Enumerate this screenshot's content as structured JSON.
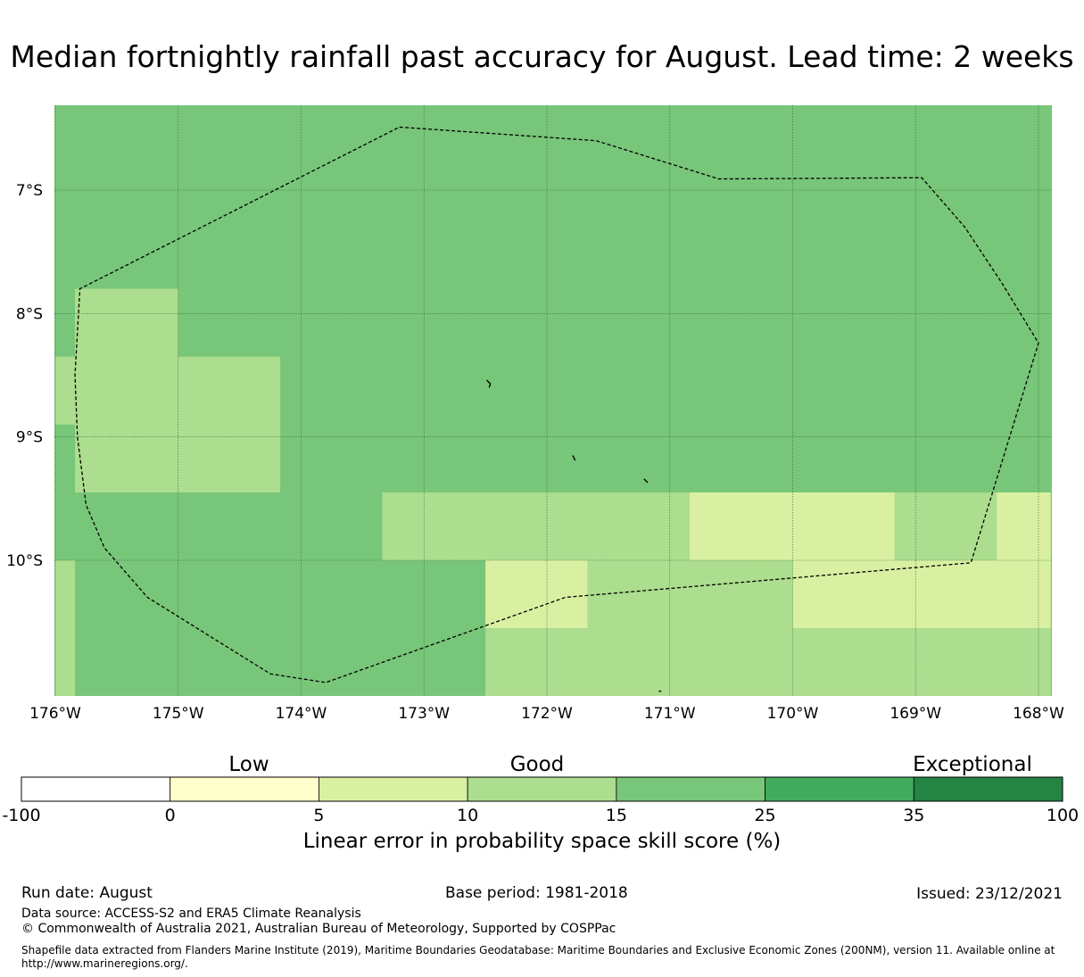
{
  "title": "Median fortnightly rainfall past accuracy for August. Lead time: 2 weeks",
  "map": {
    "lon_range": [
      -176,
      -167.9
    ],
    "lat_range": [
      -11.1,
      -6.3
    ],
    "lon_ticks": [
      {
        "value": -176,
        "label": "176°W"
      },
      {
        "value": -175,
        "label": "175°W"
      },
      {
        "value": -174,
        "label": "174°W"
      },
      {
        "value": -173,
        "label": "173°W"
      },
      {
        "value": -172,
        "label": "172°W"
      },
      {
        "value": -171,
        "label": "171°W"
      },
      {
        "value": -170,
        "label": "170°W"
      },
      {
        "value": -169,
        "label": "169°W"
      },
      {
        "value": -168,
        "label": "168°W"
      }
    ],
    "lat_ticks": [
      {
        "value": -7,
        "label": "7°S"
      },
      {
        "value": -8,
        "label": "8°S"
      },
      {
        "value": -9,
        "label": "9°S"
      },
      {
        "value": -10,
        "label": "10°S"
      }
    ],
    "background_color": "#78c679",
    "cells": [
      {
        "lon": [
          -175.84,
          -175.0
        ],
        "lat": [
          -8.9,
          -7.8
        ],
        "color": "#addd8e"
      },
      {
        "lon": [
          -176.0,
          -175.84
        ],
        "lat": [
          -8.9,
          -8.35
        ],
        "color": "#addd8e"
      },
      {
        "lon": [
          -175.0,
          -174.17
        ],
        "lat": [
          -9.45,
          -8.35
        ],
        "color": "#addd8e"
      },
      {
        "lon": [
          -175.84,
          -175.0
        ],
        "lat": [
          -9.45,
          -8.9
        ],
        "color": "#addd8e"
      },
      {
        "lon": [
          -173.34,
          -170.84
        ],
        "lat": [
          -10.0,
          -9.45
        ],
        "color": "#addd8e"
      },
      {
        "lon": [
          -170.84,
          -169.17
        ],
        "lat": [
          -10.0,
          -9.45
        ],
        "color": "#d9f0a3"
      },
      {
        "lon": [
          -169.17,
          -168.34
        ],
        "lat": [
          -10.0,
          -9.45
        ],
        "color": "#addd8e"
      },
      {
        "lon": [
          -168.34,
          -167.9
        ],
        "lat": [
          -10.0,
          -9.45
        ],
        "color": "#d9f0a3"
      },
      {
        "lon": [
          -176.0,
          -175.84
        ],
        "lat": [
          -11.1,
          -10.0
        ],
        "color": "#addd8e"
      },
      {
        "lon": [
          -172.5,
          -171.67
        ],
        "lat": [
          -10.55,
          -10.0
        ],
        "color": "#d9f0a3"
      },
      {
        "lon": [
          -171.67,
          -170.0
        ],
        "lat": [
          -10.55,
          -10.0
        ],
        "color": "#addd8e"
      },
      {
        "lon": [
          -170.0,
          -167.9
        ],
        "lat": [
          -10.55,
          -10.0
        ],
        "color": "#d9f0a3"
      },
      {
        "lon": [
          -172.5,
          -167.9
        ],
        "lat": [
          -11.1,
          -10.55
        ],
        "color": "#addd8e"
      }
    ],
    "eez_boundary": [
      [
        -173.2,
        -6.49
      ],
      [
        -171.6,
        -6.6
      ],
      [
        -170.6,
        -6.91
      ],
      [
        -168.95,
        -6.9
      ],
      [
        -168.6,
        -7.3
      ],
      [
        -168.3,
        -7.75
      ],
      [
        -168.0,
        -8.24
      ],
      [
        -168.55,
        -10.02
      ],
      [
        -171.85,
        -10.3
      ],
      [
        -173.8,
        -10.99
      ],
      [
        -174.25,
        -10.92
      ],
      [
        -175.25,
        -10.3
      ],
      [
        -175.6,
        -9.9
      ],
      [
        -175.75,
        -9.55
      ],
      [
        -175.82,
        -9.0
      ],
      [
        -175.84,
        -8.5
      ],
      [
        -175.8,
        -7.8
      ],
      [
        -173.2,
        -6.49
      ]
    ],
    "islands": [
      [
        [
          -172.49,
          -8.54
        ],
        [
          -172.46,
          -8.57
        ],
        [
          -172.47,
          -8.6
        ]
      ],
      [
        [
          -171.79,
          -9.15
        ],
        [
          -171.77,
          -9.19
        ]
      ],
      [
        [
          -171.21,
          -9.34
        ],
        [
          -171.18,
          -9.37
        ]
      ],
      [
        [
          -171.09,
          -11.06
        ],
        [
          -171.07,
          -11.06
        ]
      ]
    ]
  },
  "colorbar": {
    "categories": [
      "Low",
      "Good",
      "Exceptional"
    ],
    "tick_labels": [
      "-100",
      "0",
      "5",
      "10",
      "15",
      "25",
      "35",
      "100"
    ],
    "colors": [
      "#ffffff",
      "#ffffcc",
      "#d9f0a3",
      "#addd8e",
      "#78c679",
      "#41ab5d",
      "#238443"
    ],
    "label": "Linear error in probability space skill score (%)"
  },
  "footer": {
    "run_date": "Run date: August",
    "base_period": "Base period: 1981-2018",
    "issued": "Issued: 23/12/2021",
    "data_source": "Data source: ACCESS-S2 and ERA5 Climate Reanalysis",
    "copyright": "© Commonwealth of Australia 2021, Australian Bureau of Meteorology, Supported by COSPPac",
    "shapefile": "Shapefile data extracted from Flanders Marine Institute (2019), Maritime Boundaries Geodatabase: Maritime Boundaries and Exclusive Economic Zones (200NM), version 11. Available online at http://www.marineregions.org/."
  }
}
